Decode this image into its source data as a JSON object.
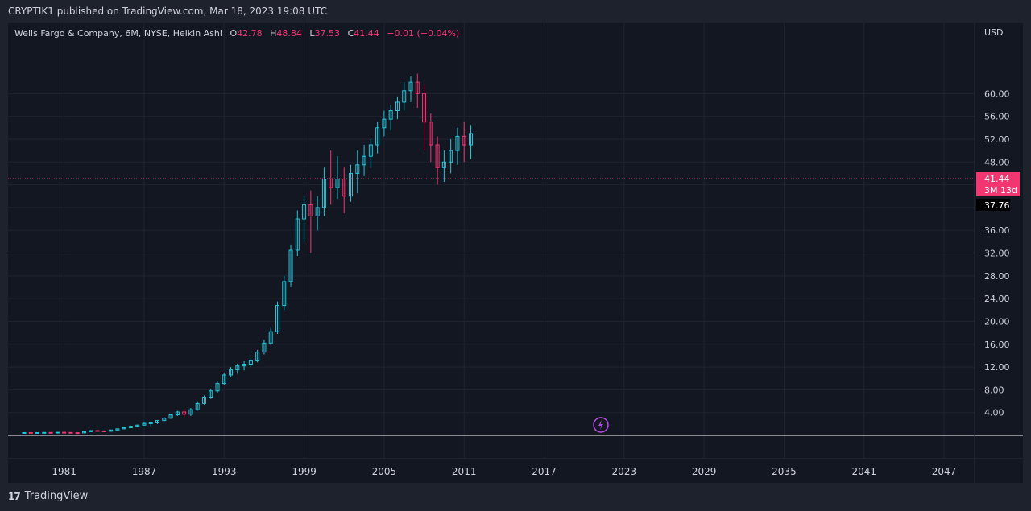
{
  "header": {
    "publisher": "CRYPTIK1 published on TradingView.com, Mar 18, 2023 19:08 UTC"
  },
  "legend": {
    "symbol": "Wells Fargo & Company, 6M, NYSE, Heikin Ashi",
    "o_label": "O",
    "o_value": "42.78",
    "h_label": "H",
    "h_value": "48.84",
    "l_label": "L",
    "l_value": "37.53",
    "c_label": "C",
    "c_value": "41.44",
    "change": "−0.01 (−0.04%)"
  },
  "price_axis": {
    "currency": "USD",
    "current_price": "41.44",
    "countdown": "3M 13d",
    "crosshair_price": "37.76"
  },
  "footer": {
    "brand": "TradingView",
    "logo_text": "17"
  },
  "colors": {
    "background": "#131722",
    "up": "#26c6da",
    "down": "#f23672",
    "text": "#d1d4dc",
    "grid": "#1f2430"
  },
  "chart_data": {
    "type": "candlestick",
    "title": "Wells Fargo & Company, 6M, NYSE, Heikin Ashi",
    "ylabel": "USD",
    "ylim": [
      0,
      64
    ],
    "y_ticks": [
      4,
      8,
      12,
      16,
      20,
      24,
      28,
      32,
      36,
      40,
      44,
      48,
      52,
      56,
      60
    ],
    "x_ticks": [
      "1981",
      "1987",
      "1993",
      "1999",
      "2005",
      "2011",
      "2017",
      "2023",
      "2029",
      "2035",
      "2041",
      "2047"
    ],
    "x_range": [
      1978.0,
      2050.5
    ],
    "last": {
      "open": 42.78,
      "high": 48.84,
      "low": 37.53,
      "close": 41.44
    },
    "candles": [
      {
        "t": 1978.0,
        "o": 0.45,
        "h": 0.55,
        "l": 0.42,
        "c": 0.5
      },
      {
        "t": 1978.5,
        "o": 0.5,
        "h": 0.56,
        "l": 0.44,
        "c": 0.48
      },
      {
        "t": 1979.0,
        "o": 0.48,
        "h": 0.55,
        "l": 0.43,
        "c": 0.5
      },
      {
        "t": 1979.5,
        "o": 0.5,
        "h": 0.57,
        "l": 0.45,
        "c": 0.52
      },
      {
        "t": 1980.0,
        "o": 0.52,
        "h": 0.58,
        "l": 0.44,
        "c": 0.49
      },
      {
        "t": 1980.5,
        "o": 0.49,
        "h": 0.6,
        "l": 0.46,
        "c": 0.55
      },
      {
        "t": 1981.0,
        "o": 0.55,
        "h": 0.62,
        "l": 0.48,
        "c": 0.52
      },
      {
        "t": 1981.5,
        "o": 0.52,
        "h": 0.58,
        "l": 0.42,
        "c": 0.48
      },
      {
        "t": 1982.0,
        "o": 0.48,
        "h": 0.56,
        "l": 0.4,
        "c": 0.44
      },
      {
        "t": 1982.5,
        "o": 0.44,
        "h": 0.7,
        "l": 0.42,
        "c": 0.65
      },
      {
        "t": 1983.0,
        "o": 0.65,
        "h": 0.9,
        "l": 0.6,
        "c": 0.85
      },
      {
        "t": 1983.5,
        "o": 0.85,
        "h": 0.95,
        "l": 0.7,
        "c": 0.78
      },
      {
        "t": 1984.0,
        "o": 0.78,
        "h": 0.88,
        "l": 0.65,
        "c": 0.72
      },
      {
        "t": 1984.5,
        "o": 0.72,
        "h": 1.0,
        "l": 0.7,
        "c": 0.95
      },
      {
        "t": 1985.0,
        "o": 0.95,
        "h": 1.2,
        "l": 0.9,
        "c": 1.15
      },
      {
        "t": 1985.5,
        "o": 1.15,
        "h": 1.4,
        "l": 1.1,
        "c": 1.35
      },
      {
        "t": 1986.0,
        "o": 1.35,
        "h": 1.7,
        "l": 1.3,
        "c": 1.6
      },
      {
        "t": 1986.5,
        "o": 1.6,
        "h": 1.9,
        "l": 1.5,
        "c": 1.8
      },
      {
        "t": 1987.0,
        "o": 1.8,
        "h": 2.3,
        "l": 1.7,
        "c": 2.1
      },
      {
        "t": 1987.5,
        "o": 2.1,
        "h": 2.4,
        "l": 1.6,
        "c": 2.2
      },
      {
        "t": 1988.0,
        "o": 2.2,
        "h": 2.7,
        "l": 2.0,
        "c": 2.6
      },
      {
        "t": 1988.5,
        "o": 2.6,
        "h": 3.2,
        "l": 2.5,
        "c": 3.0
      },
      {
        "t": 1989.0,
        "o": 3.0,
        "h": 3.8,
        "l": 2.9,
        "c": 3.6
      },
      {
        "t": 1989.5,
        "o": 3.6,
        "h": 4.3,
        "l": 3.4,
        "c": 4.1
      },
      {
        "t": 1990.0,
        "o": 4.1,
        "h": 4.6,
        "l": 3.2,
        "c": 3.7
      },
      {
        "t": 1990.5,
        "o": 3.7,
        "h": 4.8,
        "l": 3.4,
        "c": 4.5
      },
      {
        "t": 1991.0,
        "o": 4.5,
        "h": 6.0,
        "l": 4.3,
        "c": 5.6
      },
      {
        "t": 1991.5,
        "o": 5.6,
        "h": 7.0,
        "l": 5.4,
        "c": 6.7
      },
      {
        "t": 1992.0,
        "o": 6.7,
        "h": 8.2,
        "l": 6.4,
        "c": 7.8
      },
      {
        "t": 1992.5,
        "o": 7.8,
        "h": 9.4,
        "l": 7.5,
        "c": 9.1
      },
      {
        "t": 1993.0,
        "o": 9.1,
        "h": 11.0,
        "l": 8.8,
        "c": 10.6
      },
      {
        "t": 1993.5,
        "o": 10.6,
        "h": 12.0,
        "l": 10.2,
        "c": 11.5
      },
      {
        "t": 1994.0,
        "o": 11.5,
        "h": 12.6,
        "l": 10.8,
        "c": 12.2
      },
      {
        "t": 1994.5,
        "o": 12.2,
        "h": 13.0,
        "l": 11.4,
        "c": 12.5
      },
      {
        "t": 1995.0,
        "o": 12.5,
        "h": 13.6,
        "l": 12.0,
        "c": 13.2
      },
      {
        "t": 1995.5,
        "o": 13.2,
        "h": 15.0,
        "l": 12.8,
        "c": 14.6
      },
      {
        "t": 1996.0,
        "o": 14.6,
        "h": 16.8,
        "l": 14.2,
        "c": 16.2
      },
      {
        "t": 1996.5,
        "o": 16.2,
        "h": 19.0,
        "l": 15.8,
        "c": 18.2
      },
      {
        "t": 1997.0,
        "o": 18.2,
        "h": 23.5,
        "l": 17.8,
        "c": 22.8
      },
      {
        "t": 1997.5,
        "o": 22.8,
        "h": 28.0,
        "l": 22.0,
        "c": 27.0
      },
      {
        "t": 1998.0,
        "o": 27.0,
        "h": 33.5,
        "l": 26.0,
        "c": 32.5
      },
      {
        "t": 1998.5,
        "o": 32.5,
        "h": 39.5,
        "l": 31.5,
        "c": 38.0
      },
      {
        "t": 1999.0,
        "o": 38.0,
        "h": 42.0,
        "l": 34.0,
        "c": 40.5
      },
      {
        "t": 1999.5,
        "o": 40.5,
        "h": 43.0,
        "l": 32.0,
        "c": 38.5
      },
      {
        "t": 2000.0,
        "o": 38.5,
        "h": 42.0,
        "l": 36.0,
        "c": 40.0
      },
      {
        "t": 2000.5,
        "o": 40.0,
        "h": 47.0,
        "l": 38.5,
        "c": 45.0
      },
      {
        "t": 2001.0,
        "o": 45.0,
        "h": 50.0,
        "l": 40.5,
        "c": 43.5
      },
      {
        "t": 2001.5,
        "o": 43.5,
        "h": 49.0,
        "l": 41.5,
        "c": 45.0
      },
      {
        "t": 2002.0,
        "o": 45.0,
        "h": 47.0,
        "l": 39.0,
        "c": 42.0
      },
      {
        "t": 2002.5,
        "o": 42.0,
        "h": 47.5,
        "l": 41.0,
        "c": 46.0
      },
      {
        "t": 2003.0,
        "o": 46.0,
        "h": 50.0,
        "l": 42.5,
        "c": 47.5
      },
      {
        "t": 2003.5,
        "o": 47.5,
        "h": 51.0,
        "l": 45.5,
        "c": 49.0
      },
      {
        "t": 2004.0,
        "o": 49.0,
        "h": 52.0,
        "l": 47.0,
        "c": 51.0
      },
      {
        "t": 2004.5,
        "o": 51.0,
        "h": 55.0,
        "l": 49.5,
        "c": 54.0
      },
      {
        "t": 2005.0,
        "o": 54.0,
        "h": 57.0,
        "l": 52.5,
        "c": 55.5
      },
      {
        "t": 2005.5,
        "o": 55.5,
        "h": 58.0,
        "l": 53.5,
        "c": 57.0
      },
      {
        "t": 2006.0,
        "o": 57.0,
        "h": 59.5,
        "l": 55.5,
        "c": 58.5
      },
      {
        "t": 2006.5,
        "o": 58.5,
        "h": 62.0,
        "l": 57.0,
        "c": 60.5
      },
      {
        "t": 2007.0,
        "o": 60.5,
        "h": 63.0,
        "l": 58.5,
        "c": 62.0
      },
      {
        "t": 2007.5,
        "o": 62.0,
        "h": 63.5,
        "l": 57.5,
        "c": 60.0
      },
      {
        "t": 2008.0,
        "o": 60.0,
        "h": 61.5,
        "l": 50.0,
        "c": 55.0
      },
      {
        "t": 2008.5,
        "o": 55.0,
        "h": 56.5,
        "l": 48.0,
        "c": 51.0
      },
      {
        "t": 2009.0,
        "o": 51.0,
        "h": 52.5,
        "l": 44.0,
        "c": 47.0
      },
      {
        "t": 2009.5,
        "o": 47.0,
        "h": 50.0,
        "l": 44.5,
        "c": 48.0
      },
      {
        "t": 2010.0,
        "o": 48.0,
        "h": 52.0,
        "l": 46.0,
        "c": 50.0
      },
      {
        "t": 2010.5,
        "o": 50.0,
        "h": 54.0,
        "l": 47.5,
        "c": 52.5
      },
      {
        "t": 2011.0,
        "o": 52.5,
        "h": 55.0,
        "l": 48.0,
        "c": 51.0
      },
      {
        "t": 2011.5,
        "o": 51.0,
        "h": 54.5,
        "l": 48.5,
        "c": 53.0
      }
    ]
  }
}
